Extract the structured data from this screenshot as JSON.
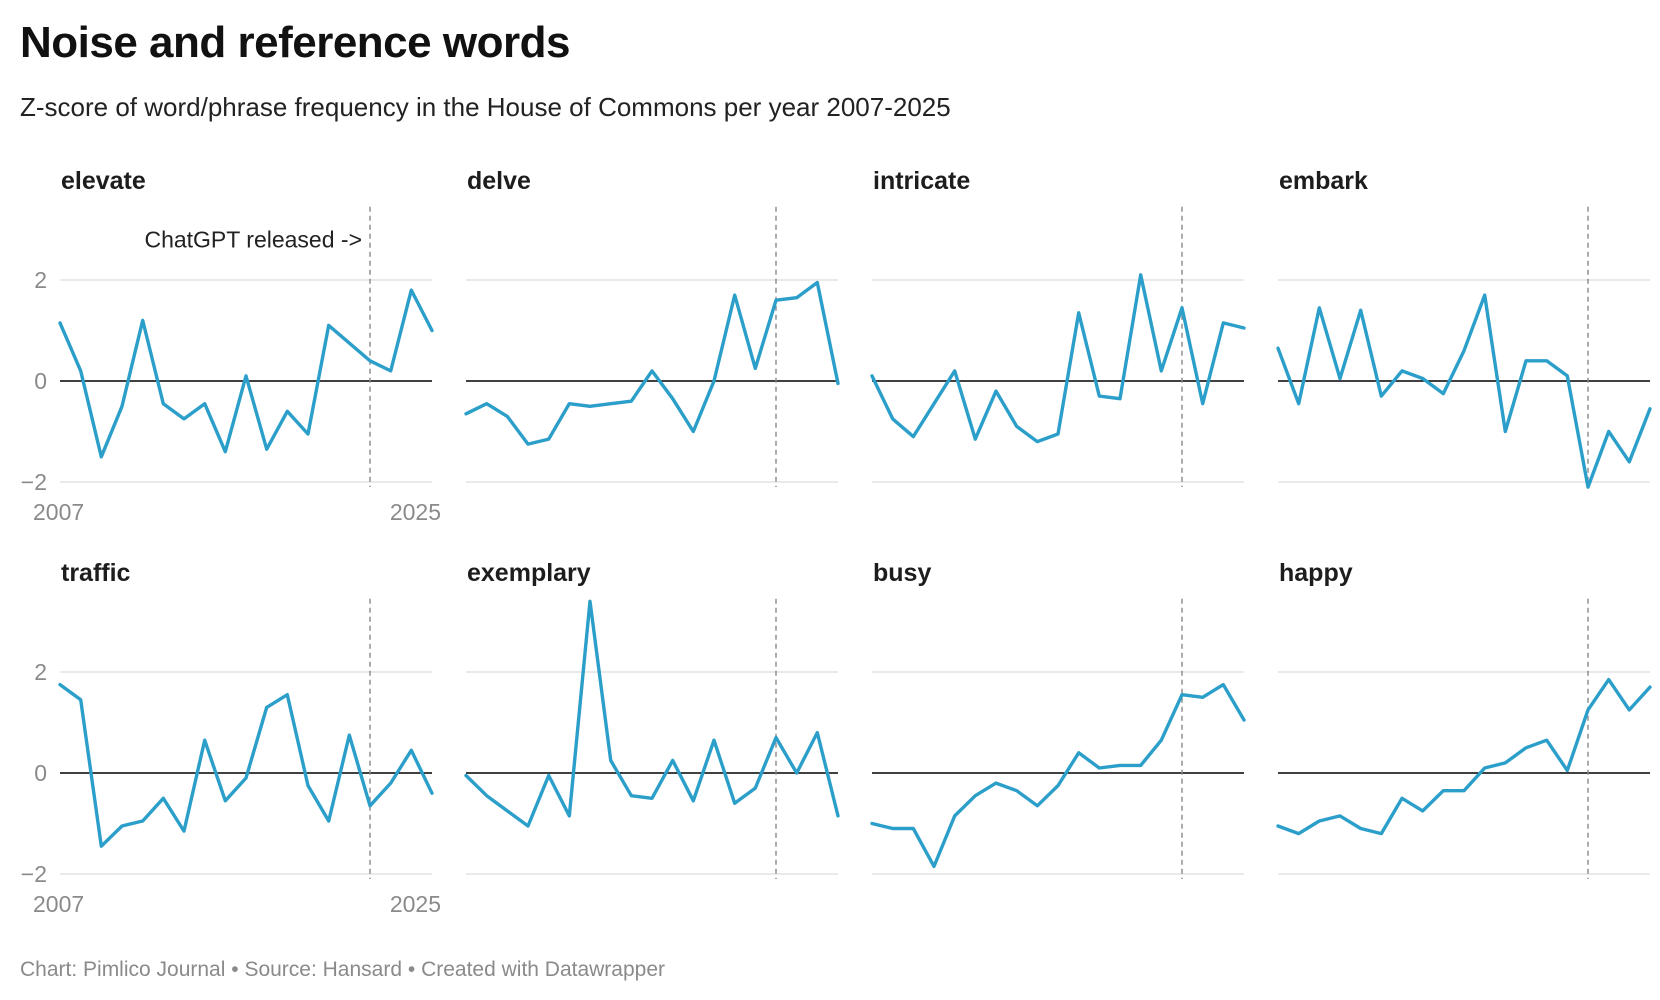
{
  "title": "Noise and reference words",
  "subtitle": "Z-score of word/phrase frequency in the House of Commons per year 2007-2025",
  "footer": {
    "chart_credit": "Chart: Pimlico Journal",
    "separator": " • ",
    "source": "Source: Hansard",
    "created_with": "Created with Datawrapper"
  },
  "colors": {
    "line": "#2b9fc9",
    "zero_line": "#000000",
    "grid": "#e3e3e3",
    "marker_line": "#888888",
    "tick_text": "#8a8a8a"
  },
  "chart_data": {
    "type": "line",
    "layout": "small-multiples",
    "x": [
      2007,
      2008,
      2009,
      2010,
      2011,
      2012,
      2013,
      2014,
      2015,
      2016,
      2017,
      2018,
      2019,
      2020,
      2021,
      2022,
      2023,
      2024,
      2025
    ],
    "xlim": [
      2007,
      2025
    ],
    "ylim": [
      -2,
      3.4
    ],
    "y_ticks": [
      {
        "value": 2,
        "label": "2"
      },
      {
        "value": 0,
        "label": "0"
      },
      {
        "value": -2,
        "label": "−2"
      }
    ],
    "x_tick_labels": {
      "start": "2007",
      "end": "2025"
    },
    "marker": {
      "x": 2022,
      "label": "ChatGPT released ->"
    },
    "series": [
      {
        "name": "elevate",
        "values": [
          1.15,
          0.2,
          -1.5,
          -0.5,
          1.2,
          -0.45,
          -0.75,
          -0.45,
          -1.4,
          0.1,
          -1.35,
          -0.6,
          -1.05,
          1.1,
          0.75,
          0.4,
          0.2,
          1.8,
          1.0
        ]
      },
      {
        "name": "delve",
        "values": [
          -0.65,
          -0.45,
          -0.7,
          -1.25,
          -1.15,
          -0.45,
          -0.5,
          -0.45,
          -0.4,
          0.2,
          -0.35,
          -1.0,
          0.0,
          1.7,
          0.25,
          1.6,
          1.65,
          1.95,
          -0.05
        ]
      },
      {
        "name": "intricate",
        "values": [
          0.1,
          -0.75,
          -1.1,
          -0.45,
          0.2,
          -1.15,
          -0.2,
          -0.9,
          -1.2,
          -1.05,
          1.35,
          -0.3,
          -0.35,
          2.1,
          0.2,
          1.45,
          -0.45,
          1.15,
          1.05
        ]
      },
      {
        "name": "embark",
        "values": [
          0.65,
          -0.45,
          1.45,
          0.05,
          1.4,
          -0.3,
          0.2,
          0.05,
          -0.25,
          0.6,
          1.7,
          -1.0,
          0.4,
          0.4,
          0.1,
          -2.1,
          -1.0,
          -1.6,
          -0.55
        ]
      },
      {
        "name": "traffic",
        "values": [
          1.75,
          1.45,
          -1.45,
          -1.05,
          -0.95,
          -0.5,
          -1.15,
          0.65,
          -0.55,
          -0.1,
          1.3,
          1.55,
          -0.25,
          -0.95,
          0.75,
          -0.65,
          -0.2,
          0.45,
          -0.4
        ]
      },
      {
        "name": "exemplary",
        "values": [
          -0.05,
          -0.45,
          -0.75,
          -1.05,
          -0.05,
          -0.85,
          3.4,
          0.25,
          -0.45,
          -0.5,
          0.25,
          -0.55,
          0.65,
          -0.6,
          -0.3,
          0.7,
          0.0,
          0.8,
          -0.85
        ]
      },
      {
        "name": "busy",
        "values": [
          -1.0,
          -1.1,
          -1.1,
          -1.85,
          -0.85,
          -0.45,
          -0.2,
          -0.35,
          -0.65,
          -0.25,
          0.4,
          0.1,
          0.15,
          0.15,
          0.65,
          1.55,
          1.5,
          1.75,
          1.05
        ]
      },
      {
        "name": "happy",
        "values": [
          -1.05,
          -1.2,
          -0.95,
          -0.85,
          -1.1,
          -1.2,
          -0.5,
          -0.75,
          -0.35,
          -0.35,
          0.1,
          0.2,
          0.5,
          0.65,
          0.05,
          1.25,
          1.85,
          1.25,
          1.7
        ]
      }
    ]
  }
}
